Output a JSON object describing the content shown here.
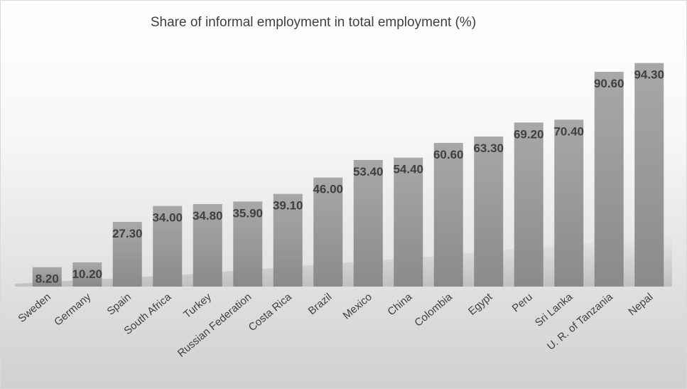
{
  "chart_data": {
    "type": "bar",
    "title": "Share of informal employment  in total employment (%)",
    "xlabel": "",
    "ylabel": "",
    "ylim": [
      0,
      100
    ],
    "grid": false,
    "legend": "none",
    "bar_color": "#9a9a9a",
    "categories": [
      "Sweden",
      "Germany",
      "Spain",
      "South Africa",
      "Turkey",
      "Russian Federation",
      "Costa Rica",
      "Brazil",
      "Mexico",
      "China",
      "Colombia",
      "Egypt",
      "Peru",
      "Sri Lanka",
      "U. R. of Tanzania",
      "Nepal"
    ],
    "values": [
      8.2,
      10.2,
      27.3,
      34.0,
      34.8,
      35.9,
      39.1,
      46.0,
      53.4,
      54.4,
      60.6,
      63.3,
      69.2,
      70.4,
      90.6,
      94.3
    ],
    "value_labels": [
      "8.20",
      "10.20",
      "27.30",
      "34.00",
      "34.80",
      "35.90",
      "39.10",
      "46.00",
      "53.40",
      "54.40",
      "60.60",
      "63.30",
      "69.20",
      "70.40",
      "90.60",
      "94.30"
    ]
  }
}
